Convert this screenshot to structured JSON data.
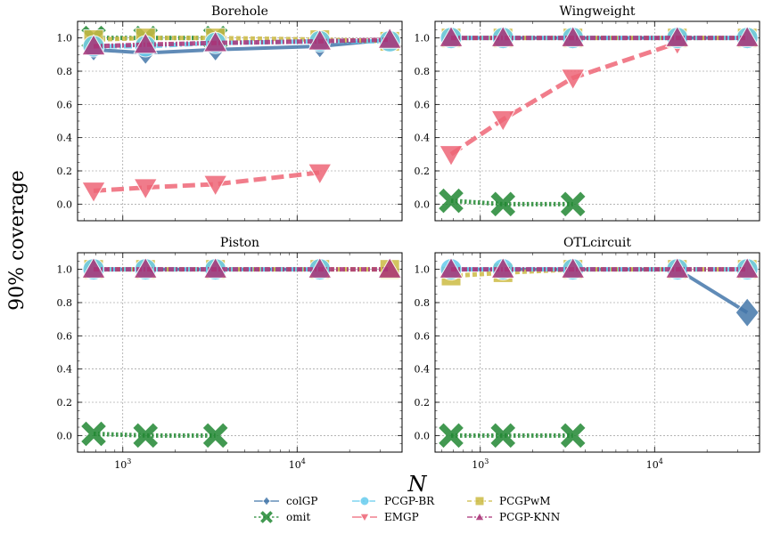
{
  "figure": {
    "ylabel": "90% coverage",
    "xlabel": "N",
    "legend": {
      "placement": "bottom-center",
      "entries": [
        {
          "name": "colGP",
          "color": "#4477AA",
          "linestyle": "solid",
          "marker": "diamond"
        },
        {
          "name": "omit",
          "color": "#228833",
          "linestyle": "dotted",
          "marker": "x"
        },
        {
          "name": "PCGP-BR",
          "color": "#66CCEE",
          "linestyle": "dashdot",
          "marker": "circle"
        },
        {
          "name": "EMGP",
          "color": "#EE6677",
          "linestyle": "dashed",
          "marker": "triangle-down"
        },
        {
          "name": "PCGPwM",
          "color": "#CCBB44",
          "linestyle": "dashed-short",
          "marker": "square"
        },
        {
          "name": "PCGP-KNN",
          "color": "#AA3377",
          "linestyle": "dashdot-dense",
          "marker": "triangle-up"
        }
      ]
    }
  },
  "chart_data": [
    {
      "type": "line",
      "title": "Borehole",
      "xscale": "log",
      "xlim": [
        550,
        40000
      ],
      "ylim": [
        -0.1,
        1.1
      ],
      "yticks": [
        "0.0",
        "0.2",
        "0.4",
        "0.6",
        "0.8",
        "1.0"
      ],
      "xticks": [
        "10^3",
        "10^4"
      ],
      "grid": true,
      "series": [
        {
          "name": "colGP",
          "x": [
            680,
            1350,
            3400,
            13500,
            34000
          ],
          "y": [
            0.93,
            0.91,
            0.93,
            0.95,
            0.99
          ]
        },
        {
          "name": "EMGP",
          "x": [
            680,
            1350,
            3400,
            13500
          ],
          "y": [
            0.08,
            0.1,
            0.12,
            0.19
          ]
        },
        {
          "name": "omit",
          "x": [
            680,
            1350,
            3400
          ],
          "y": [
            1.0,
            1.0,
            1.0
          ]
        },
        {
          "name": "PCGPwM",
          "x": [
            680,
            1350,
            3400,
            13500,
            34000
          ],
          "y": [
            0.99,
            1.0,
            1.0,
            0.99,
            0.98
          ]
        },
        {
          "name": "PCGP-BR",
          "x": [
            680,
            1350,
            3400,
            13500,
            34000
          ],
          "y": [
            0.95,
            0.95,
            0.97,
            0.98,
            0.98
          ]
        },
        {
          "name": "PCGP-KNN",
          "x": [
            680,
            1350,
            3400,
            13500,
            34000
          ],
          "y": [
            0.95,
            0.96,
            0.97,
            0.98,
            0.99
          ]
        }
      ]
    },
    {
      "type": "line",
      "title": "Wingweight",
      "xscale": "log",
      "xlim": [
        550,
        40000
      ],
      "ylim": [
        -0.1,
        1.1
      ],
      "yticks": [
        "0.0",
        "0.2",
        "0.4",
        "0.6",
        "0.8",
        "1.0"
      ],
      "xticks": [
        "10^3",
        "10^4"
      ],
      "grid": true,
      "series": [
        {
          "name": "colGP",
          "x": [
            680,
            1350,
            3400,
            13500,
            34000
          ],
          "y": [
            1.0,
            1.0,
            1.0,
            1.0,
            1.0
          ]
        },
        {
          "name": "EMGP",
          "x": [
            680,
            1350,
            3400,
            13500
          ],
          "y": [
            0.3,
            0.51,
            0.76,
            0.97
          ]
        },
        {
          "name": "omit",
          "x": [
            680,
            1350,
            3400
          ],
          "y": [
            0.02,
            0.0,
            0.0
          ]
        },
        {
          "name": "PCGPwM",
          "x": [
            680,
            1350,
            3400,
            13500,
            34000
          ],
          "y": [
            1.0,
            1.0,
            1.0,
            1.0,
            1.0
          ]
        },
        {
          "name": "PCGP-BR",
          "x": [
            680,
            1350,
            3400,
            13500,
            34000
          ],
          "y": [
            1.0,
            1.0,
            1.0,
            1.0,
            1.0
          ]
        },
        {
          "name": "PCGP-KNN",
          "x": [
            680,
            1350,
            3400,
            13500,
            34000
          ],
          "y": [
            1.0,
            1.0,
            1.0,
            1.0,
            1.0
          ]
        }
      ]
    },
    {
      "type": "line",
      "title": "Piston",
      "xscale": "log",
      "xlim": [
        550,
        40000
      ],
      "ylim": [
        -0.1,
        1.1
      ],
      "yticks": [
        "0.0",
        "0.2",
        "0.4",
        "0.6",
        "0.8",
        "1.0"
      ],
      "xticks": [
        "10^3",
        "10^4"
      ],
      "grid": true,
      "series": [
        {
          "name": "colGP",
          "x": [
            680,
            1350,
            3400,
            13500
          ],
          "y": [
            1.0,
            1.0,
            1.0,
            1.0
          ]
        },
        {
          "name": "omit",
          "x": [
            680,
            1350,
            3400
          ],
          "y": [
            0.01,
            0.0,
            0.0
          ]
        },
        {
          "name": "PCGPwM",
          "x": [
            680,
            1350,
            3400,
            13500,
            34000
          ],
          "y": [
            1.0,
            1.0,
            1.0,
            1.0,
            1.0
          ]
        },
        {
          "name": "PCGP-BR",
          "x": [
            680,
            1350,
            3400,
            13500
          ],
          "y": [
            1.0,
            1.0,
            1.0,
            1.0
          ]
        },
        {
          "name": "PCGP-KNN",
          "x": [
            680,
            1350,
            3400,
            13500,
            34000
          ],
          "y": [
            1.0,
            1.0,
            1.0,
            1.0,
            1.0
          ]
        }
      ]
    },
    {
      "type": "line",
      "title": "OTLcircuit",
      "xscale": "log",
      "xlim": [
        550,
        40000
      ],
      "ylim": [
        -0.1,
        1.1
      ],
      "yticks": [
        "0.0",
        "0.2",
        "0.4",
        "0.6",
        "0.8",
        "1.0"
      ],
      "xticks": [
        "10^3",
        "10^4"
      ],
      "grid": true,
      "series": [
        {
          "name": "colGP",
          "x": [
            680,
            1350,
            3400,
            13500,
            34000
          ],
          "y": [
            1.0,
            1.0,
            1.0,
            1.0,
            0.74
          ]
        },
        {
          "name": "omit",
          "x": [
            680,
            1350,
            3400
          ],
          "y": [
            0.0,
            0.0,
            0.0
          ]
        },
        {
          "name": "PCGPwM",
          "x": [
            680,
            1350,
            3400,
            13500,
            34000
          ],
          "y": [
            0.96,
            0.98,
            1.0,
            1.0,
            1.0
          ]
        },
        {
          "name": "PCGP-BR",
          "x": [
            680,
            1350,
            3400,
            13500,
            34000
          ],
          "y": [
            1.0,
            1.0,
            1.0,
            1.0,
            1.0
          ]
        },
        {
          "name": "PCGP-KNN",
          "x": [
            680,
            1350,
            3400,
            13500,
            34000
          ],
          "y": [
            1.0,
            1.0,
            1.0,
            1.0,
            1.0
          ]
        }
      ]
    }
  ]
}
